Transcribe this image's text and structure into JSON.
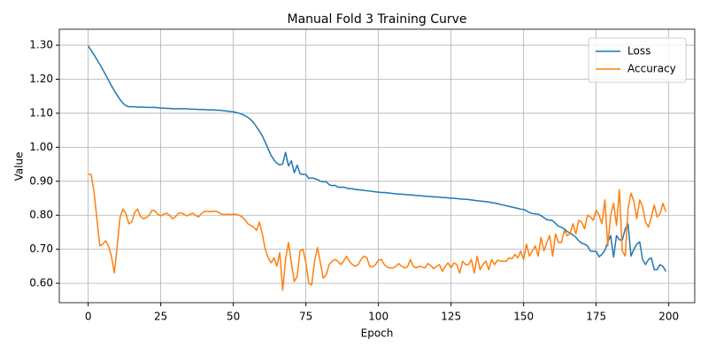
{
  "chart_data": {
    "type": "line",
    "title": "Manual Fold 3 Training Curve",
    "x_label": "Epoch",
    "y_label": "Value",
    "x": [
      0,
      1,
      2,
      3,
      4,
      5,
      6,
      7,
      8,
      9,
      10,
      11,
      12,
      13,
      14,
      15,
      16,
      17,
      18,
      19,
      20,
      21,
      22,
      23,
      24,
      25,
      26,
      27,
      28,
      29,
      30,
      31,
      32,
      33,
      34,
      35,
      36,
      37,
      38,
      39,
      40,
      41,
      42,
      43,
      44,
      45,
      46,
      47,
      48,
      49,
      50,
      51,
      52,
      53,
      54,
      55,
      56,
      57,
      58,
      59,
      60,
      61,
      62,
      63,
      64,
      65,
      66,
      67,
      68,
      69,
      70,
      71,
      72,
      73,
      74,
      75,
      76,
      77,
      78,
      79,
      80,
      81,
      82,
      83,
      84,
      85,
      86,
      87,
      88,
      89,
      90,
      91,
      92,
      93,
      94,
      95,
      96,
      97,
      98,
      99,
      100,
      101,
      102,
      103,
      104,
      105,
      106,
      107,
      108,
      109,
      110,
      111,
      112,
      113,
      114,
      115,
      116,
      117,
      118,
      119,
      120,
      121,
      122,
      123,
      124,
      125,
      126,
      127,
      128,
      129,
      130,
      131,
      132,
      133,
      134,
      135,
      136,
      137,
      138,
      139,
      140,
      141,
      142,
      143,
      144,
      145,
      146,
      147,
      148,
      149,
      150,
      151,
      152,
      153,
      154,
      155,
      156,
      157,
      158,
      159,
      160,
      161,
      162,
      163,
      164,
      165,
      166,
      167,
      168,
      169,
      170,
      171,
      172,
      173,
      174,
      175,
      176,
      177,
      178,
      179,
      180,
      181,
      182,
      183,
      184,
      185,
      186,
      187,
      188,
      189,
      190,
      191,
      192,
      193,
      194,
      195,
      196,
      197,
      198,
      199
    ],
    "series": [
      {
        "name": "Loss",
        "color": "#1f77b4",
        "values": [
          1.298,
          1.285,
          1.272,
          1.258,
          1.244,
          1.229,
          1.213,
          1.197,
          1.181,
          1.166,
          1.153,
          1.14,
          1.129,
          1.122,
          1.119,
          1.119,
          1.119,
          1.118,
          1.118,
          1.118,
          1.117,
          1.117,
          1.117,
          1.117,
          1.116,
          1.115,
          1.115,
          1.114,
          1.114,
          1.113,
          1.113,
          1.113,
          1.113,
          1.113,
          1.113,
          1.112,
          1.112,
          1.112,
          1.111,
          1.111,
          1.111,
          1.11,
          1.11,
          1.11,
          1.109,
          1.109,
          1.108,
          1.107,
          1.106,
          1.105,
          1.104,
          1.102,
          1.1,
          1.097,
          1.093,
          1.088,
          1.081,
          1.072,
          1.06,
          1.047,
          1.033,
          1.015,
          0.995,
          0.976,
          0.963,
          0.953,
          0.948,
          0.951,
          0.985,
          0.945,
          0.96,
          0.925,
          0.947,
          0.922,
          0.92,
          0.92,
          0.908,
          0.91,
          0.908,
          0.905,
          0.9,
          0.898,
          0.899,
          0.89,
          0.887,
          0.888,
          0.883,
          0.882,
          0.883,
          0.88,
          0.878,
          0.878,
          0.876,
          0.875,
          0.874,
          0.873,
          0.872,
          0.871,
          0.87,
          0.869,
          0.868,
          0.867,
          0.867,
          0.866,
          0.865,
          0.864,
          0.863,
          0.862,
          0.862,
          0.861,
          0.86,
          0.86,
          0.859,
          0.858,
          0.858,
          0.857,
          0.856,
          0.856,
          0.855,
          0.854,
          0.854,
          0.853,
          0.852,
          0.852,
          0.851,
          0.85,
          0.85,
          0.849,
          0.848,
          0.847,
          0.847,
          0.846,
          0.845,
          0.844,
          0.843,
          0.842,
          0.841,
          0.84,
          0.839,
          0.837,
          0.836,
          0.834,
          0.832,
          0.83,
          0.828,
          0.826,
          0.824,
          0.822,
          0.82,
          0.818,
          0.817,
          0.813,
          0.808,
          0.805,
          0.804,
          0.803,
          0.799,
          0.793,
          0.787,
          0.786,
          0.784,
          0.776,
          0.768,
          0.765,
          0.76,
          0.752,
          0.748,
          0.742,
          0.735,
          0.725,
          0.718,
          0.715,
          0.71,
          0.695,
          0.694,
          0.694,
          0.678,
          0.685,
          0.697,
          0.72,
          0.74,
          0.677,
          0.74,
          0.728,
          0.727,
          0.76,
          0.774,
          0.68,
          0.7,
          0.715,
          0.722,
          0.67,
          0.655,
          0.67,
          0.675,
          0.64,
          0.64,
          0.655,
          0.65,
          0.635
        ]
      },
      {
        "name": "Accuracy",
        "color": "#ff7f0e",
        "values": [
          0.92,
          0.92,
          0.87,
          0.79,
          0.71,
          0.715,
          0.725,
          0.71,
          0.68,
          0.63,
          0.71,
          0.795,
          0.818,
          0.805,
          0.775,
          0.78,
          0.808,
          0.818,
          0.797,
          0.79,
          0.793,
          0.8,
          0.815,
          0.813,
          0.803,
          0.798,
          0.803,
          0.806,
          0.8,
          0.79,
          0.795,
          0.805,
          0.807,
          0.803,
          0.798,
          0.802,
          0.806,
          0.8,
          0.795,
          0.805,
          0.811,
          0.812,
          0.81,
          0.812,
          0.812,
          0.808,
          0.803,
          0.802,
          0.803,
          0.802,
          0.803,
          0.803,
          0.8,
          0.795,
          0.787,
          0.775,
          0.77,
          0.766,
          0.755,
          0.78,
          0.745,
          0.7,
          0.675,
          0.66,
          0.675,
          0.65,
          0.69,
          0.58,
          0.67,
          0.72,
          0.66,
          0.605,
          0.62,
          0.695,
          0.7,
          0.66,
          0.6,
          0.595,
          0.665,
          0.705,
          0.66,
          0.615,
          0.625,
          0.655,
          0.665,
          0.67,
          0.665,
          0.655,
          0.665,
          0.68,
          0.665,
          0.655,
          0.65,
          0.655,
          0.67,
          0.68,
          0.675,
          0.65,
          0.648,
          0.655,
          0.668,
          0.67,
          0.655,
          0.648,
          0.645,
          0.645,
          0.65,
          0.658,
          0.65,
          0.645,
          0.648,
          0.67,
          0.65,
          0.645,
          0.65,
          0.648,
          0.645,
          0.658,
          0.652,
          0.643,
          0.65,
          0.655,
          0.635,
          0.65,
          0.66,
          0.645,
          0.66,
          0.655,
          0.63,
          0.665,
          0.655,
          0.655,
          0.67,
          0.63,
          0.68,
          0.64,
          0.655,
          0.665,
          0.64,
          0.67,
          0.655,
          0.668,
          0.665,
          0.665,
          0.665,
          0.675,
          0.672,
          0.685,
          0.675,
          0.695,
          0.67,
          0.715,
          0.68,
          0.695,
          0.71,
          0.68,
          0.735,
          0.695,
          0.72,
          0.74,
          0.68,
          0.745,
          0.72,
          0.72,
          0.755,
          0.74,
          0.745,
          0.775,
          0.745,
          0.785,
          0.78,
          0.76,
          0.8,
          0.795,
          0.785,
          0.815,
          0.8,
          0.775,
          0.845,
          0.71,
          0.8,
          0.835,
          0.77,
          0.875,
          0.695,
          0.68,
          0.82,
          0.865,
          0.84,
          0.79,
          0.845,
          0.825,
          0.78,
          0.765,
          0.795,
          0.83,
          0.795,
          0.805,
          0.835,
          0.81
        ]
      }
    ],
    "xlim": [
      -9.95,
      208.95
    ],
    "ylim": [
      0.543,
      1.347
    ],
    "xticks": [
      0,
      25,
      50,
      75,
      100,
      125,
      150,
      175,
      200
    ],
    "yticks": [
      {
        "value": 0.6,
        "label": "0.60"
      },
      {
        "value": 0.7,
        "label": "0.70"
      },
      {
        "value": 0.8,
        "label": "0.80"
      },
      {
        "value": 0.9,
        "label": "0.90"
      },
      {
        "value": 1.0,
        "label": "1.00"
      },
      {
        "value": 1.1,
        "label": "1.10"
      },
      {
        "value": 1.2,
        "label": "1.20"
      },
      {
        "value": 1.3,
        "label": "1.30"
      }
    ],
    "grid": true,
    "legend": "upper-right"
  }
}
